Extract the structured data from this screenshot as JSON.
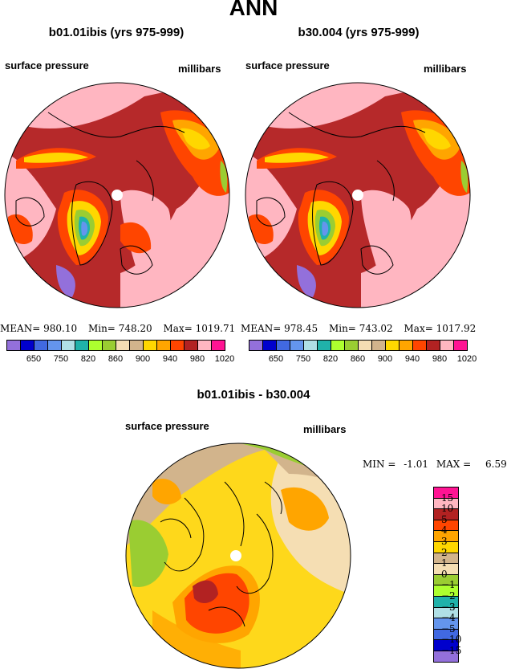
{
  "page_title": "ANN",
  "panels": [
    {
      "case_title": "b01.01ibis (yrs 975-999)",
      "field_label": "surface pressure",
      "units_label": "millibars",
      "stats": {
        "mean_label": "MEAN=",
        "mean": "980.10",
        "min_label": "Min=",
        "min": "748.20",
        "max_label": "Max=",
        "max": "1019.71"
      }
    },
    {
      "case_title": "b30.004 (yrs 975-999)",
      "field_label": "surface pressure",
      "units_label": "millibars",
      "stats": {
        "mean_label": "MEAN=",
        "mean": "978.45",
        "min_label": "Min=",
        "min": "743.02",
        "max_label": "Max=",
        "max": "1017.92"
      }
    }
  ],
  "colorbar_top": {
    "colors": [
      "#9370db",
      "#0000cd",
      "#4169e1",
      "#6495ed",
      "#b0e0e6",
      "#20b2aa",
      "#adff2f",
      "#9acd32",
      "#f5deb3",
      "#d2b48c",
      "#ffd700",
      "#ffa500",
      "#ff4500",
      "#b22222",
      "#ffb6c1",
      "#ff1493"
    ],
    "tick_labels": [
      "650",
      "750",
      "820",
      "860",
      "900",
      "940",
      "980",
      "1020"
    ]
  },
  "difference": {
    "title": "b01.01ibis - b30.004",
    "field_label": "surface pressure",
    "units_label": "millibars",
    "stats": {
      "min_label": "MIN =",
      "min": "-1.01",
      "max_label": "MAX =",
      "max": "6.59"
    },
    "colorbar": {
      "colors": [
        "#ff1493",
        "#ffb6c1",
        "#b22222",
        "#ff4500",
        "#ffa500",
        "#ffd700",
        "#d2b48c",
        "#f5deb3",
        "#9acd32",
        "#adff2f",
        "#20b2aa",
        "#b0e0e6",
        "#6495ed",
        "#4169e1",
        "#0000cd",
        "#9370db"
      ],
      "labels": [
        "15",
        "10",
        "5",
        "4",
        "3",
        "2",
        "1",
        "0",
        "−1",
        "−2",
        "−3",
        "−4",
        "−5",
        "−10",
        "−15"
      ]
    }
  }
}
